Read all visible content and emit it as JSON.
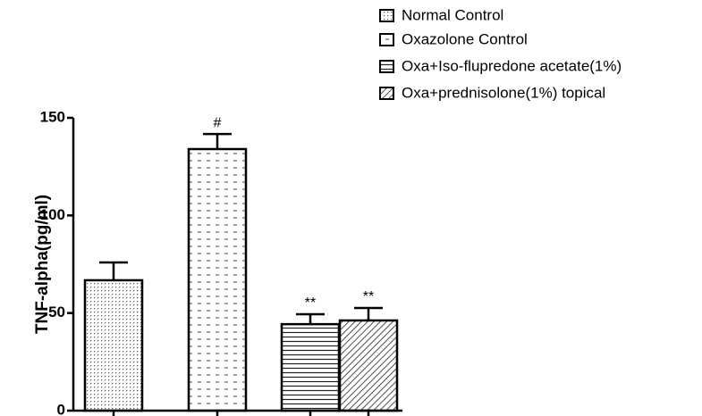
{
  "chart_data": {
    "type": "bar",
    "ylabel": "TNF-alpha(pg/ml)",
    "ylim": [
      0,
      150
    ],
    "yticks": [
      0,
      50,
      100,
      150
    ],
    "color": "#000000",
    "series": [
      {
        "name": "Normal Control",
        "pattern": "dots",
        "values": [
          66.8
        ],
        "errors": [
          9.1
        ]
      },
      {
        "name": "Oxazolone Control",
        "pattern": "dashes",
        "values": [
          134
        ],
        "errors": [
          7.7
        ],
        "annotation": "#"
      },
      {
        "name": "Oxa+Iso-flupredone acetate(1%)",
        "pattern": "horizontal",
        "values": [
          44.3
        ],
        "errors": [
          5.1
        ],
        "annotation": "**"
      },
      {
        "name": "Oxa+prednisolone(1%) topical",
        "pattern": "diagonal",
        "values": [
          46.2
        ],
        "errors": [
          6.4
        ],
        "annotation": "**"
      }
    ]
  }
}
